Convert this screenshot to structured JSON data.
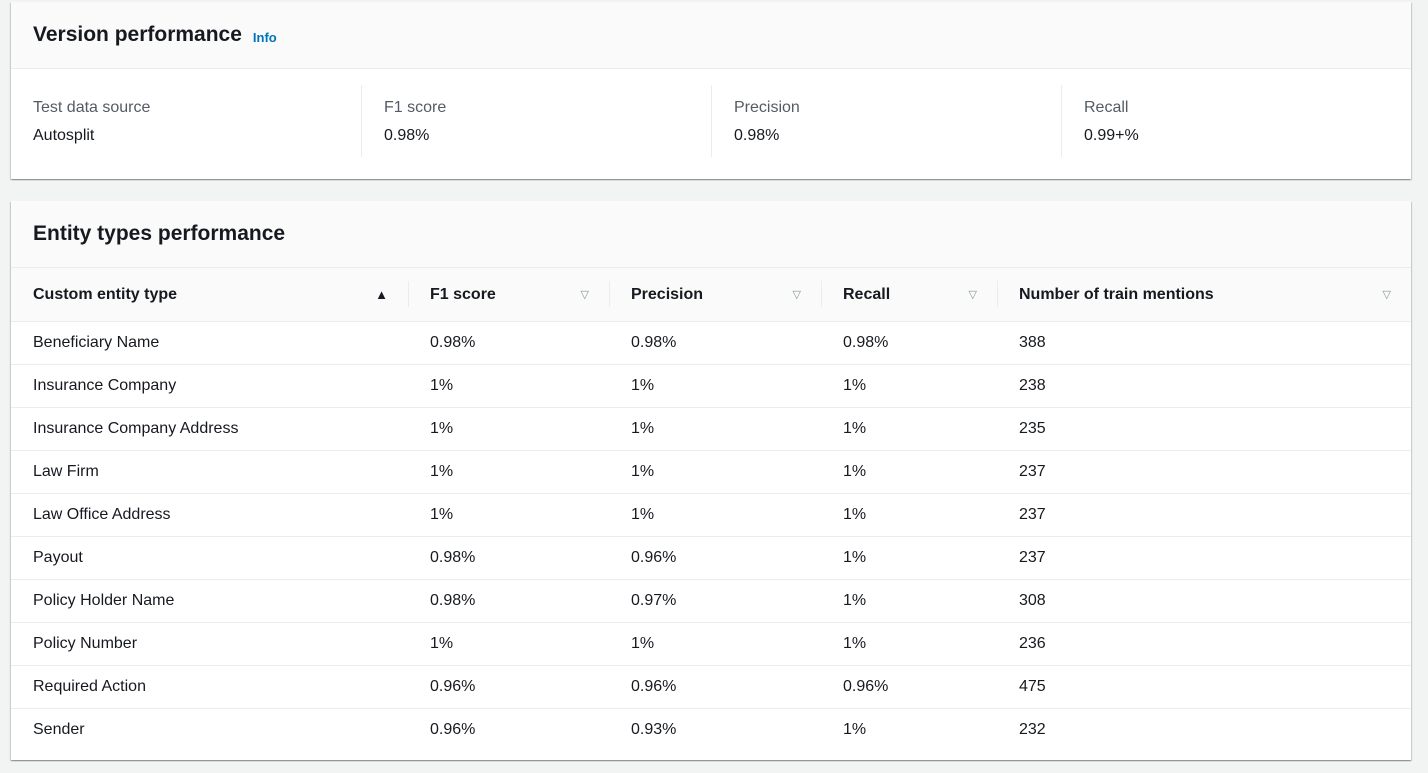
{
  "version_panel": {
    "title": "Version performance",
    "info_label": "Info",
    "metrics": [
      {
        "label": "Test data source",
        "value": "Autosplit"
      },
      {
        "label": "F1 score",
        "value": "0.98%"
      },
      {
        "label": "Precision",
        "value": "0.98%"
      },
      {
        "label": "Recall",
        "value": "0.99+%"
      }
    ]
  },
  "entity_panel": {
    "title": "Entity types performance",
    "columns": [
      {
        "label": "Custom entity type",
        "sort": "ascending"
      },
      {
        "label": "F1 score",
        "sort": "none"
      },
      {
        "label": "Precision",
        "sort": "none"
      },
      {
        "label": "Recall",
        "sort": "none"
      },
      {
        "label": "Number of train mentions",
        "sort": "none"
      }
    ],
    "sort_icons": {
      "ascending": "▲",
      "none": "▽"
    },
    "rows": [
      [
        "Beneficiary Name",
        "0.98%",
        "0.98%",
        "0.98%",
        "388"
      ],
      [
        "Insurance Company",
        "1%",
        "1%",
        "1%",
        "238"
      ],
      [
        "Insurance Company Address",
        "1%",
        "1%",
        "1%",
        "235"
      ],
      [
        "Law Firm",
        "1%",
        "1%",
        "1%",
        "237"
      ],
      [
        "Law Office Address",
        "1%",
        "1%",
        "1%",
        "237"
      ],
      [
        "Payout",
        "0.98%",
        "0.96%",
        "1%",
        "237"
      ],
      [
        "Policy Holder Name",
        "0.98%",
        "0.97%",
        "1%",
        "308"
      ],
      [
        "Policy Number",
        "1%",
        "1%",
        "1%",
        "236"
      ],
      [
        "Required Action",
        "0.96%",
        "0.96%",
        "0.96%",
        "475"
      ],
      [
        "Sender",
        "0.96%",
        "0.93%",
        "1%",
        "232"
      ]
    ]
  }
}
